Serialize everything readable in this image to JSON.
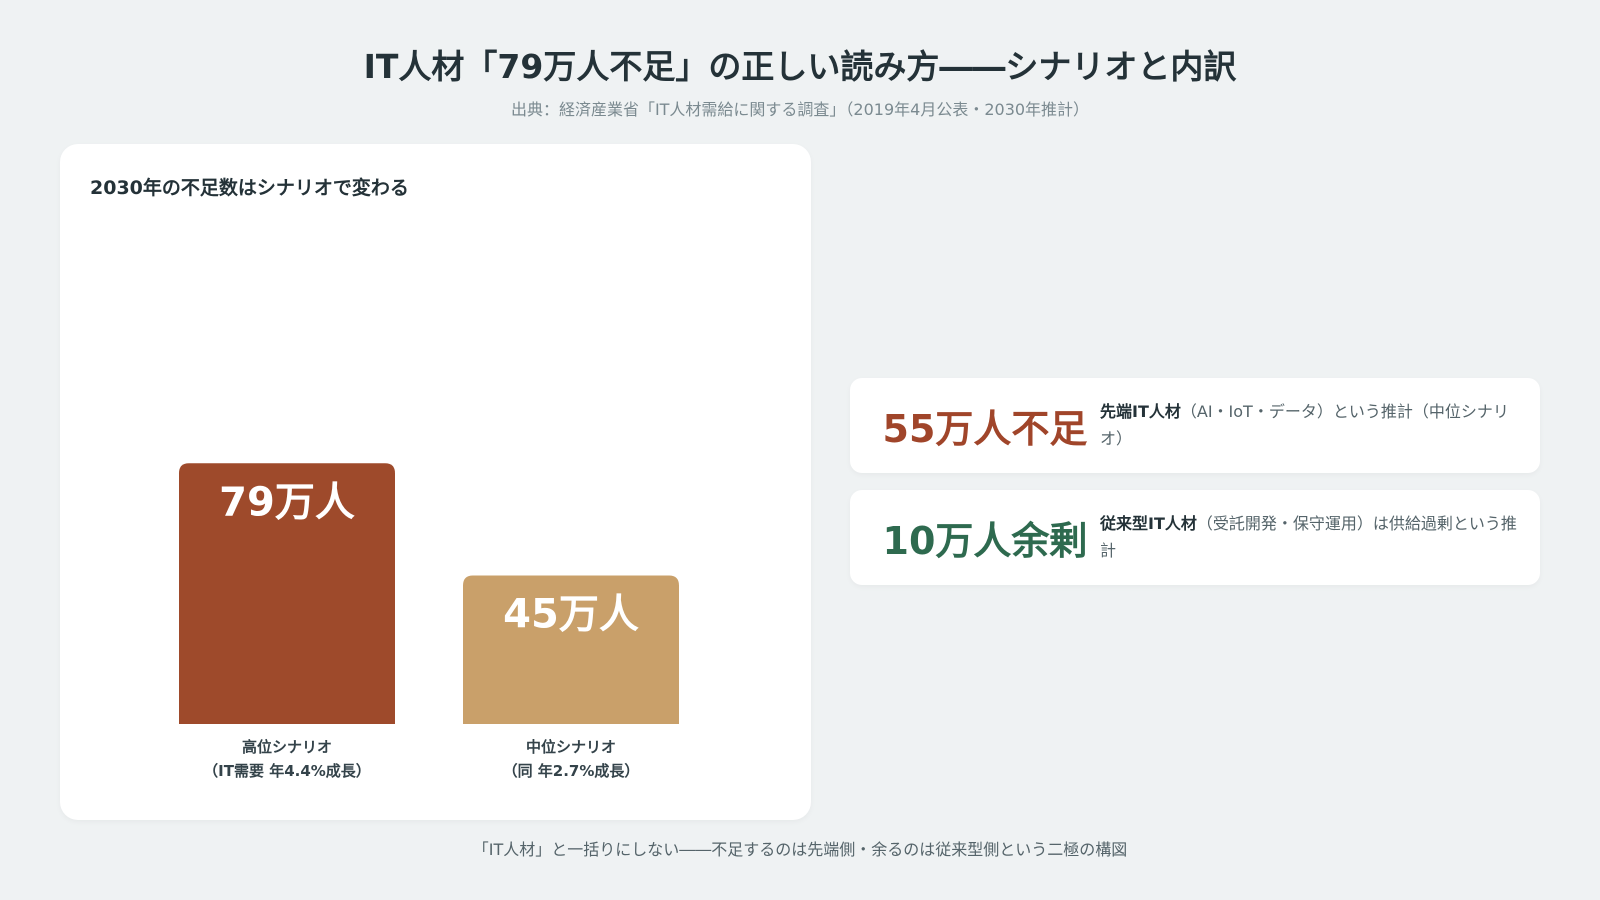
{
  "header": {
    "title": "IT人材「79万人不足」の正しい読み方――シナリオと内訳",
    "source": "出典：経済産業省「IT人材需給に関する調査」（2019年4月公表・2030年推計）"
  },
  "chart_data": {
    "type": "bar",
    "title": "2030年の不足数はシナリオで変わる",
    "categories": [
      [
        "高位シナリオ",
        "（IT需要 年4.4%成長）"
      ],
      [
        "中位シナリオ",
        "（同 年2.7%成長）"
      ]
    ],
    "values": [
      79,
      45
    ],
    "value_labels": [
      "79万人",
      "45万人"
    ],
    "unit": "万人",
    "ylim": [
      0,
      100
    ],
    "colors": [
      "#9e4a2b",
      "#c9a06a"
    ],
    "grid": false,
    "legend": "none"
  },
  "cards": [
    {
      "big": "55万人不足",
      "big_color": "#a0452a",
      "bold": "先端IT人材",
      "rest": "（AI・IoT・データ）という推計（中位シナリオ）"
    },
    {
      "big": "10万人余剰",
      "big_color": "#2e6a4f",
      "bold": "従来型IT人材",
      "rest": "（受託開発・保守運用）は供給過剰という推計"
    }
  ],
  "footer": "「IT人材」と一括りにしない――不足するのは先端側・余るのは従来型側という二極の構図"
}
